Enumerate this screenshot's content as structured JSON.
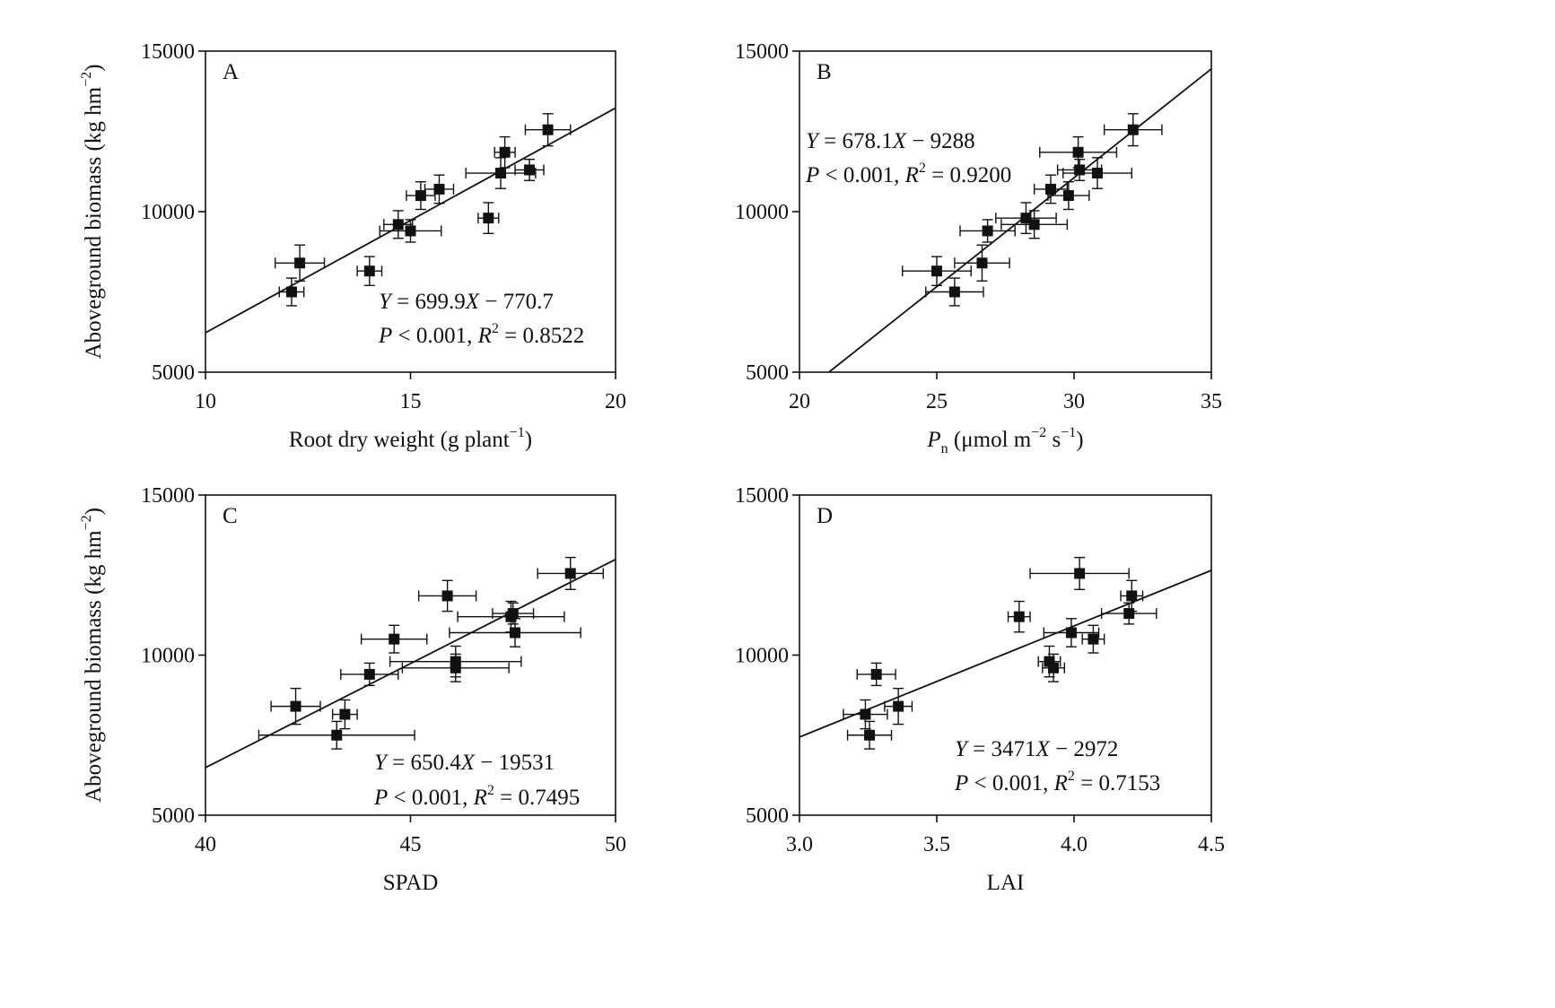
{
  "chart_data": [
    {
      "type": "scatter",
      "panel": "A",
      "xlabel": "Root dry weight (g plant",
      "xlabel_sup": "−1",
      "xlabel_tail": ")",
      "ylabel": "Aboveground biomass (kg hm",
      "ylabel_sup": "−2",
      "ylabel_tail": ")",
      "xlim": [
        10,
        20
      ],
      "ylim": [
        5000,
        15000
      ],
      "xticks": [
        "10",
        "15",
        "20"
      ],
      "yticks": [
        "5000",
        "10000",
        "15000"
      ],
      "eq_line1": "Y = 699.9X − 770.7",
      "eq_line2": "P < 0.001, R² = 0.8522",
      "fit": {
        "slope": 699.9,
        "intercept": -770.7
      },
      "points": [
        {
          "x": 12.1,
          "y": 7500,
          "xerr": 0.3,
          "yerr": 430
        },
        {
          "x": 12.3,
          "y": 8400,
          "xerr": 0.6,
          "yerr": 560
        },
        {
          "x": 14.0,
          "y": 8150,
          "xerr": 0.3,
          "yerr": 450
        },
        {
          "x": 14.7,
          "y": 9600,
          "xerr": 0.35,
          "yerr": 430
        },
        {
          "x": 15.0,
          "y": 9400,
          "xerr": 0.75,
          "yerr": 350
        },
        {
          "x": 15.25,
          "y": 10500,
          "xerr": 0.35,
          "yerr": 430
        },
        {
          "x": 15.7,
          "y": 10700,
          "xerr": 0.35,
          "yerr": 440
        },
        {
          "x": 16.9,
          "y": 9800,
          "xerr": 0.25,
          "yerr": 480
        },
        {
          "x": 17.2,
          "y": 11200,
          "xerr": 0.85,
          "yerr": 480
        },
        {
          "x": 17.3,
          "y": 11850,
          "xerr": 0.25,
          "yerr": 480
        },
        {
          "x": 17.9,
          "y": 11300,
          "xerr": 0.35,
          "yerr": 330
        },
        {
          "x": 18.35,
          "y": 12550,
          "xerr": 0.55,
          "yerr": 500
        }
      ]
    },
    {
      "type": "scatter",
      "panel": "B",
      "xlabel": "P",
      "xlabel_sub": "n",
      "xlabel_mid": " (μmol m",
      "xlabel_sup": "−2",
      "xlabel_mid2": " s",
      "xlabel_sup2": "−1",
      "xlabel_tail": ")",
      "xlim": [
        20,
        35
      ],
      "ylim": [
        5000,
        15000
      ],
      "xticks": [
        "20",
        "25",
        "30",
        "35"
      ],
      "yticks": [
        "5000",
        "10000",
        "15000"
      ],
      "eq_line1": "Y = 678.1X − 9288",
      "eq_line2": "P < 0.001, R² = 0.9200",
      "fit": {
        "slope": 678.1,
        "intercept": -9288
      },
      "points": [
        {
          "x": 25.0,
          "y": 8150,
          "xerr": 1.25,
          "yerr": 450
        },
        {
          "x": 25.65,
          "y": 7500,
          "xerr": 1.05,
          "yerr": 430
        },
        {
          "x": 26.65,
          "y": 8400,
          "xerr": 1.0,
          "yerr": 560
        },
        {
          "x": 26.85,
          "y": 9400,
          "xerr": 1.0,
          "yerr": 350
        },
        {
          "x": 28.25,
          "y": 9800,
          "xerr": 1.1,
          "yerr": 480
        },
        {
          "x": 28.55,
          "y": 9600,
          "xerr": 1.2,
          "yerr": 430
        },
        {
          "x": 29.15,
          "y": 10700,
          "xerr": 0.6,
          "yerr": 440
        },
        {
          "x": 29.8,
          "y": 10500,
          "xerr": 0.75,
          "yerr": 430
        },
        {
          "x": 30.15,
          "y": 11850,
          "xerr": 1.4,
          "yerr": 480
        },
        {
          "x": 30.2,
          "y": 11300,
          "xerr": 0.8,
          "yerr": 330
        },
        {
          "x": 30.85,
          "y": 11200,
          "xerr": 1.25,
          "yerr": 480
        },
        {
          "x": 32.15,
          "y": 12550,
          "xerr": 1.05,
          "yerr": 500
        }
      ]
    },
    {
      "type": "scatter",
      "panel": "C",
      "xlabel": "SPAD",
      "ylabel": "Aboveground biomass (kg hm",
      "ylabel_sup": "−2",
      "ylabel_tail": ")",
      "xlim": [
        40,
        50
      ],
      "ylim": [
        5000,
        15000
      ],
      "xticks": [
        "40",
        "45",
        "50"
      ],
      "yticks": [
        "5000",
        "10000",
        "15000"
      ],
      "eq_line1": "Y = 650.4X − 19531",
      "eq_line2": "P < 0.001, R² = 0.7495",
      "fit": {
        "slope": 650.4,
        "intercept": -19531
      },
      "points": [
        {
          "x": 42.2,
          "y": 8400,
          "xerr": 0.6,
          "yerr": 560
        },
        {
          "x": 43.2,
          "y": 7500,
          "xerr": 1.9,
          "yerr": 430
        },
        {
          "x": 43.4,
          "y": 8150,
          "xerr": 0.3,
          "yerr": 450
        },
        {
          "x": 44.0,
          "y": 9400,
          "xerr": 0.7,
          "yerr": 350
        },
        {
          "x": 44.6,
          "y": 10500,
          "xerr": 0.8,
          "yerr": 430
        },
        {
          "x": 45.9,
          "y": 11850,
          "xerr": 0.7,
          "yerr": 480
        },
        {
          "x": 46.1,
          "y": 9800,
          "xerr": 1.6,
          "yerr": 480
        },
        {
          "x": 46.1,
          "y": 9600,
          "xerr": 1.3,
          "yerr": 430
        },
        {
          "x": 47.45,
          "y": 11200,
          "xerr": 1.3,
          "yerr": 480
        },
        {
          "x": 47.5,
          "y": 11300,
          "xerr": 0.5,
          "yerr": 330
        },
        {
          "x": 47.55,
          "y": 10700,
          "xerr": 1.6,
          "yerr": 440
        },
        {
          "x": 48.9,
          "y": 12550,
          "xerr": 0.8,
          "yerr": 500
        }
      ]
    },
    {
      "type": "scatter",
      "panel": "D",
      "xlabel": "LAI",
      "xlim": [
        3.0,
        4.5
      ],
      "ylim": [
        5000,
        15000
      ],
      "xticks": [
        "3.0",
        "3.5",
        "4.0",
        "4.5"
      ],
      "yticks": [
        "5000",
        "10000",
        "15000"
      ],
      "eq_line1": "Y = 3471X − 2972",
      "eq_line2": "P < 0.001, R² = 0.7153",
      "fit": {
        "slope": 3471,
        "intercept": -2972
      },
      "points": [
        {
          "x": 3.24,
          "y": 8150,
          "xerr": 0.08,
          "yerr": 450
        },
        {
          "x": 3.255,
          "y": 7500,
          "xerr": 0.08,
          "yerr": 430
        },
        {
          "x": 3.28,
          "y": 9400,
          "xerr": 0.07,
          "yerr": 350
        },
        {
          "x": 3.36,
          "y": 8400,
          "xerr": 0.05,
          "yerr": 560
        },
        {
          "x": 3.8,
          "y": 11200,
          "xerr": 0.04,
          "yerr": 480
        },
        {
          "x": 3.91,
          "y": 9800,
          "xerr": 0.04,
          "yerr": 480
        },
        {
          "x": 3.925,
          "y": 9600,
          "xerr": 0.04,
          "yerr": 430
        },
        {
          "x": 3.99,
          "y": 10700,
          "xerr": 0.1,
          "yerr": 440
        },
        {
          "x": 4.02,
          "y": 12550,
          "xerr": 0.18,
          "yerr": 500
        },
        {
          "x": 4.07,
          "y": 10500,
          "xerr": 0.04,
          "yerr": 430
        },
        {
          "x": 4.2,
          "y": 11300,
          "xerr": 0.1,
          "yerr": 330
        },
        {
          "x": 4.21,
          "y": 11850,
          "xerr": 0.04,
          "yerr": 480
        }
      ]
    }
  ]
}
